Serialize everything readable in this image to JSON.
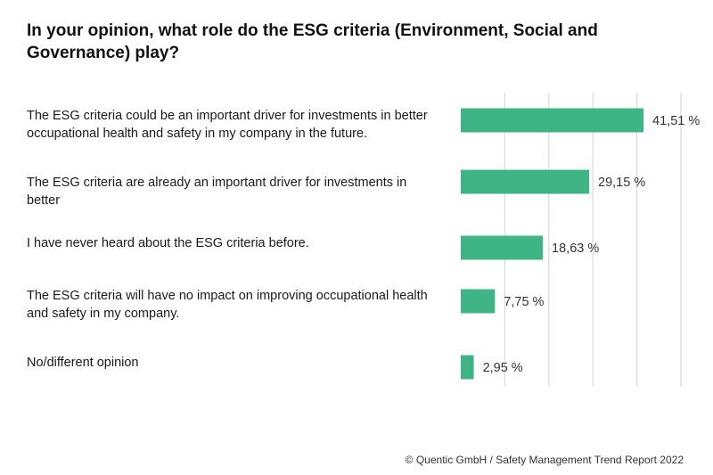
{
  "title": "In your opinion, what role do the ESG criteria (Environment, Social and Governance) play?",
  "footer": "© Quentic GmbH / Safety Management Trend Report 2022",
  "chart_data": {
    "type": "bar",
    "orientation": "horizontal",
    "categories": [
      "The ESG criteria could be an important driver for investments in better occupational health and safety in my company in the future.",
      "The ESG criteria are already an important driver for investments in better",
      "I have never heard about the ESG criteria before.",
      "The ESG criteria will have no impact on improving occupational health and safety in my company.",
      "No/different opinion"
    ],
    "values": [
      41.51,
      29.15,
      18.63,
      7.75,
      2.95
    ],
    "value_labels": [
      "41,51 %",
      "29,15 %",
      "18,63 %",
      "7,75 %",
      "2,95 %"
    ],
    "unit": "%",
    "xlim": [
      0,
      50
    ],
    "grid": true,
    "bar_color": "#3fb585",
    "grid_color": "#dcdcdc"
  }
}
